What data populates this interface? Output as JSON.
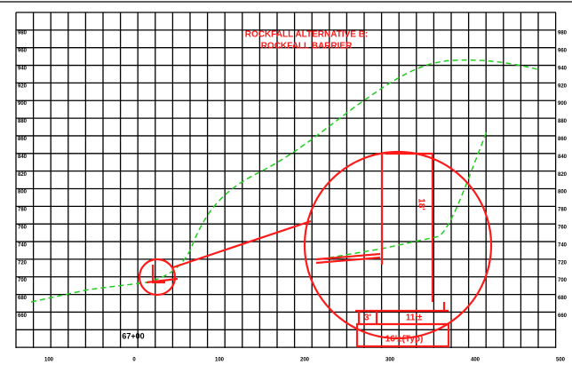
{
  "title": [
    "ROCKFALL ALTERNATIVE B:",
    "ROCKFALL BARRIER"
  ],
  "elevation_labels": [
    "980",
    "960",
    "940",
    "920",
    "900",
    "880",
    "860",
    "840",
    "820",
    "800",
    "780",
    "760",
    "740",
    "720",
    "700",
    "680",
    "660"
  ],
  "offset_labels": [
    "100",
    "0",
    "100",
    "200",
    "300",
    "400",
    "500"
  ],
  "station": "67+00",
  "detail": {
    "height": "18'",
    "depth": "3'",
    "width": "11'±",
    "footing": "16'±(Typ)"
  }
}
